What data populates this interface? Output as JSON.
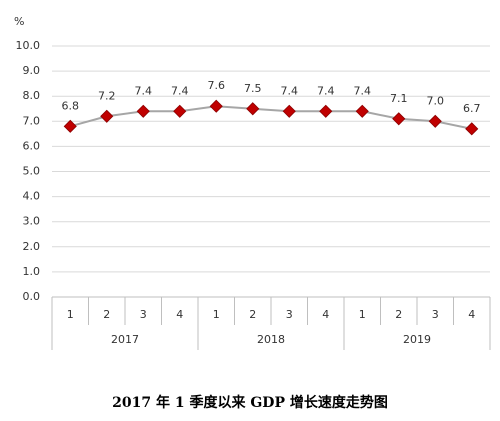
{
  "chart_data": {
    "type": "line",
    "title": "2017 年 1 季度以来 GDP 增长速度走势图",
    "y_unit": "%",
    "categories": [
      "1",
      "2",
      "3",
      "4",
      "1",
      "2",
      "3",
      "4",
      "1",
      "2",
      "3",
      "4"
    ],
    "x_groups": [
      "2017",
      "2018",
      "2019"
    ],
    "series": [
      {
        "name": "GDP",
        "color": "#a6a6a6",
        "marker_color": "#c00000",
        "values": [
          6.8,
          7.2,
          7.4,
          7.4,
          7.6,
          7.5,
          7.4,
          7.4,
          7.4,
          7.1,
          7.0,
          6.7
        ],
        "value_labels": [
          "6.8",
          "7.2",
          "7.4",
          "7.4",
          "7.6",
          "7.5",
          "7.4",
          "7.4",
          "7.4",
          "7.1",
          "7.0",
          "6.7"
        ]
      }
    ],
    "ylim": [
      0,
      10
    ],
    "yticks": [
      {
        "value": 0,
        "label": "0.0"
      },
      {
        "value": 1,
        "label": "1.0"
      },
      {
        "value": 2,
        "label": "2.0"
      },
      {
        "value": 3,
        "label": "3.0"
      },
      {
        "value": 4,
        "label": "4.0"
      },
      {
        "value": 5,
        "label": "5.0"
      },
      {
        "value": 6,
        "label": "6.0"
      },
      {
        "value": 7,
        "label": "7.0"
      },
      {
        "value": 8,
        "label": "8.0"
      },
      {
        "value": 9,
        "label": "9.0"
      },
      {
        "value": 10,
        "label": "10.0"
      }
    ],
    "grid": true
  }
}
